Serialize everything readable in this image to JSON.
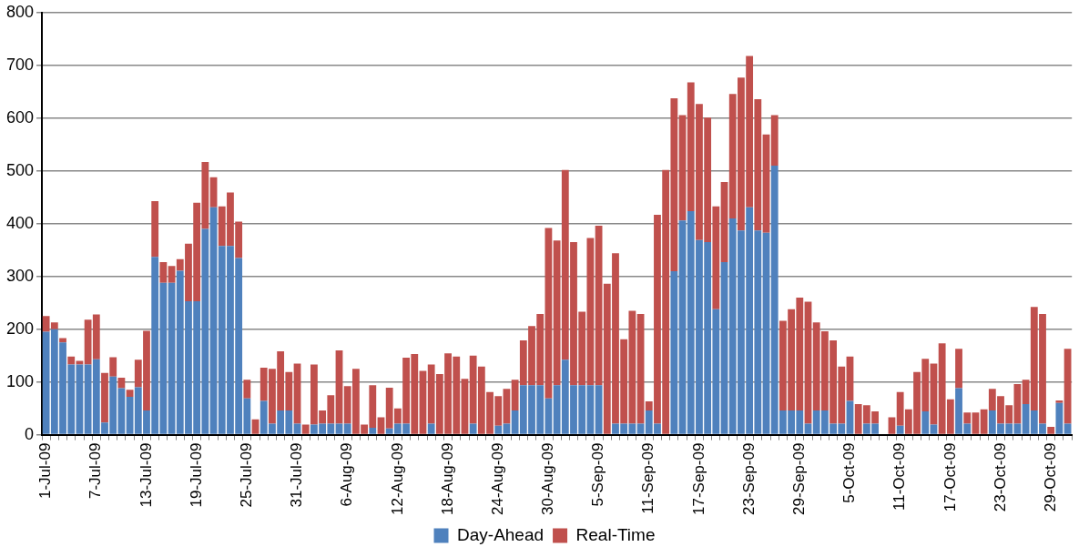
{
  "chart_data": {
    "type": "bar",
    "stacked": true,
    "categories": [
      "1-Jul-09",
      null,
      null,
      null,
      null,
      null,
      "7-Jul-09",
      null,
      null,
      null,
      null,
      null,
      "13-Jul-09",
      null,
      null,
      null,
      null,
      null,
      "19-Jul-09",
      null,
      null,
      null,
      null,
      null,
      "25-Jul-09",
      null,
      null,
      null,
      null,
      null,
      "31-Jul-09",
      null,
      null,
      null,
      null,
      null,
      "6-Aug-09",
      null,
      null,
      null,
      null,
      null,
      "12-Aug-09",
      null,
      null,
      null,
      null,
      null,
      "18-Aug-09",
      null,
      null,
      null,
      null,
      null,
      "24-Aug-09",
      null,
      null,
      null,
      null,
      null,
      "30-Aug-09",
      null,
      null,
      null,
      null,
      null,
      "5-Sep-09",
      null,
      null,
      null,
      null,
      null,
      "11-Sep-09",
      null,
      null,
      null,
      null,
      null,
      "17-Sep-09",
      null,
      null,
      null,
      null,
      null,
      "23-Sep-09",
      null,
      null,
      null,
      null,
      null,
      "29-Sep-09",
      null,
      null,
      null,
      null,
      null,
      "5-Oct-09",
      null,
      null,
      null,
      null,
      null,
      "11-Oct-09",
      null,
      null,
      null,
      null,
      null,
      "17-Oct-09",
      null,
      null,
      null,
      null,
      null,
      "23-Oct-09",
      null,
      null,
      null,
      null,
      null,
      "29-Oct-09",
      null,
      null
    ],
    "series": [
      {
        "name": "Day-Ahead",
        "color": "#4f81bd",
        "values": [
          195,
          200,
          175,
          133,
          133,
          133,
          143,
          23,
          110,
          88,
          72,
          90,
          46,
          337,
          288,
          288,
          311,
          253,
          253,
          390,
          431,
          358,
          358,
          335,
          69,
          0,
          64,
          21,
          46,
          46,
          21,
          0,
          19,
          21,
          21,
          21,
          21,
          0,
          0,
          13,
          0,
          12,
          21,
          21,
          0,
          0,
          21,
          0,
          0,
          0,
          0,
          21,
          0,
          0,
          17,
          21,
          46,
          94,
          94,
          94,
          69,
          94,
          142,
          94,
          94,
          94,
          94,
          0,
          21,
          21,
          21,
          21,
          46,
          21,
          0,
          310,
          406,
          424,
          369,
          365,
          238,
          327,
          410,
          387,
          431,
          387,
          383,
          510,
          46,
          46,
          46,
          21,
          46,
          46,
          21,
          21,
          64,
          0,
          21,
          21,
          0,
          0,
          17,
          0,
          0,
          44,
          19,
          0,
          0,
          88,
          21,
          0,
          0,
          46,
          21,
          21,
          21,
          58,
          46,
          21,
          0,
          60,
          21
        ]
      },
      {
        "name": "Real-Time",
        "color": "#c0504d",
        "values": [
          30,
          13,
          8,
          15,
          7,
          85,
          85,
          94,
          37,
          20,
          13,
          52,
          151,
          106,
          39,
          32,
          22,
          109,
          187,
          127,
          57,
          75,
          101,
          69,
          35,
          29,
          63,
          104,
          112,
          73,
          114,
          19,
          114,
          25,
          54,
          139,
          71,
          125,
          19,
          81,
          33,
          77,
          29,
          125,
          153,
          121,
          112,
          115,
          154,
          148,
          106,
          129,
          129,
          81,
          56,
          66,
          58,
          85,
          112,
          135,
          323,
          274,
          360,
          271,
          139,
          279,
          302,
          286,
          323,
          160,
          214,
          208,
          17,
          396,
          502,
          328,
          200,
          244,
          258,
          236,
          195,
          152,
          236,
          290,
          287,
          249,
          186,
          96,
          170,
          192,
          214,
          231,
          167,
          150,
          158,
          108,
          84,
          58,
          35,
          23,
          0,
          33,
          64,
          48,
          119,
          100,
          116,
          173,
          67,
          75,
          21,
          42,
          48,
          41,
          52,
          35,
          75,
          46,
          196,
          208,
          15,
          5,
          142
        ]
      }
    ],
    "ylim": [
      0,
      800
    ],
    "yticks": [
      0,
      100,
      200,
      300,
      400,
      500,
      600,
      700,
      800
    ],
    "grid": "y",
    "legend": "bottom"
  }
}
